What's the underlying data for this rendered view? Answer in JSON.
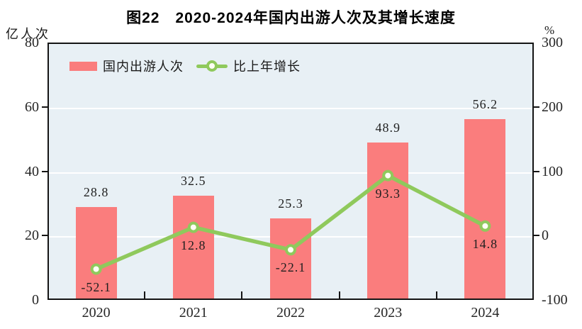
{
  "title": "图22　2020-2024年国内出游人次及其增长速度",
  "left_axis": {
    "unit": "亿人次",
    "min": 0,
    "max": 80,
    "ticks": [
      0,
      20,
      40,
      60,
      80
    ]
  },
  "right_axis": {
    "unit": "%",
    "min": -100,
    "max": 300,
    "ticks": [
      -100,
      0,
      100,
      200,
      300
    ]
  },
  "legend": {
    "bar_label": "国内出游人次",
    "line_label": "比上年增长"
  },
  "colors": {
    "bar": "#fa7d7d",
    "line": "#8fc95c",
    "marker_fill": "#fffef5",
    "plot_background": "#e8f0f5",
    "gridline": "#ffffff",
    "axis": "#141414"
  },
  "chart_data": {
    "type": "bar+line",
    "title": "图22　2020-2024年国内出游人次及其增长速度",
    "categories": [
      "2020",
      "2021",
      "2022",
      "2023",
      "2024"
    ],
    "series": [
      {
        "name": "国内出游人次",
        "type": "bar",
        "axis": "left",
        "color": "#fa7d7d",
        "values": [
          28.8,
          32.5,
          25.3,
          48.9,
          56.2
        ],
        "labels": [
          "28.8",
          "32.5",
          "25.3",
          "48.9",
          "56.2"
        ]
      },
      {
        "name": "比上年增长",
        "type": "line",
        "axis": "right",
        "color": "#8fc95c",
        "values": [
          -52.1,
          12.8,
          -22.1,
          93.3,
          14.8
        ],
        "labels": [
          "-52.1",
          "12.8",
          "-22.1",
          "93.3",
          "14.8"
        ]
      }
    ],
    "left_ylabel": "亿人次",
    "right_ylabel": "%",
    "left_ylim": [
      0,
      80
    ],
    "right_ylim": [
      -100,
      300
    ],
    "grid": true,
    "legend_position": "top-left-inside"
  }
}
